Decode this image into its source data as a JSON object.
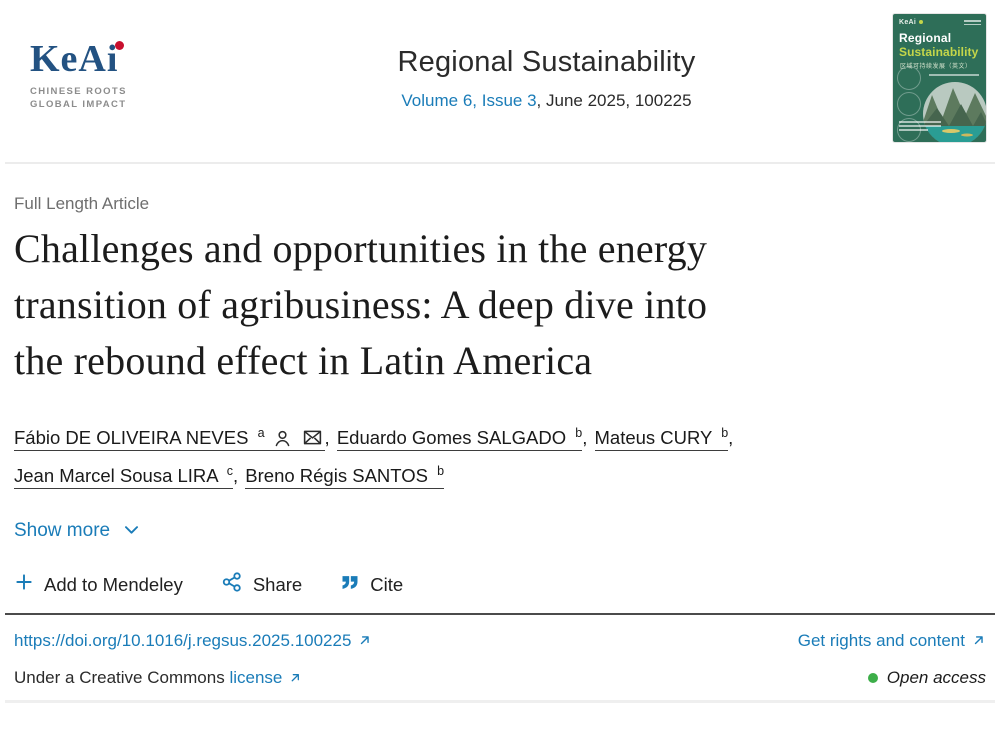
{
  "colors": {
    "link_blue": "#1a7cb8",
    "text_dark": "#212121",
    "label_gray": "#6e6e6e",
    "keai_navy": "#235282",
    "keai_red": "#c8102e",
    "open_access_green": "#3dae49",
    "cover_green": "#2e6e58",
    "cover_yellow": "#c4d64a"
  },
  "header": {
    "logo": {
      "wordmark": "KeAi",
      "tagline_line1": "CHINESE ROOTS",
      "tagline_line2": "GLOBAL IMPACT"
    },
    "journal_title": "Regional Sustainability",
    "issue_link": "Volume 6, Issue 3",
    "issue_suffix": ", June 2025, 100225",
    "cover": {
      "keai": "KeAi",
      "title_line1": "Regional",
      "title_line2": "Sustainability",
      "subtitle_cn": "区域可持续发展（英文）"
    }
  },
  "article": {
    "type_label": "Full Length Article",
    "title": "Challenges and opportunities in the energy transition of agribusiness: A deep dive into the rebound effect in Latin America",
    "title_lines": [
      "Challenges and opportunities in the energy",
      "transition of agribusiness: A deep dive into",
      "the rebound effect in Latin America"
    ],
    "authors": [
      {
        "name": "Fábio DE OLIVEIRA NEVES",
        "sup": "a",
        "icons": [
          "person",
          "envelope"
        ]
      },
      {
        "name": "Eduardo Gomes SALGADO",
        "sup": "b"
      },
      {
        "name": "Mateus CURY",
        "sup": "b"
      },
      {
        "name": "Jean Marcel Sousa LIRA",
        "sup": "c"
      },
      {
        "name": "Breno Régis SANTOS",
        "sup": "b"
      }
    ],
    "show_more_label": "Show more"
  },
  "actions": {
    "mendeley_label": "Add to Mendeley",
    "share_label": "Share",
    "cite_label": "Cite"
  },
  "footer": {
    "doi": "https://doi.org/10.1016/j.regsus.2025.100225",
    "rights_label": "Get rights and content",
    "license_prefix": "Under a Creative Commons",
    "license_link": "license",
    "open_access_label": "Open access"
  }
}
